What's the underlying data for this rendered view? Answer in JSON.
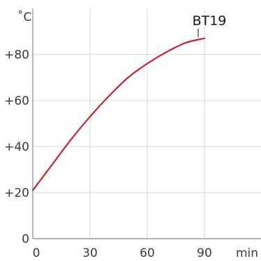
{
  "chart_data": {
    "type": "line",
    "title": "",
    "xlabel": "min",
    "ylabel": "˚C",
    "xlim": [
      0,
      90
    ],
    "ylim": [
      0,
      100
    ],
    "x_ticks": [
      0,
      30,
      60,
      90
    ],
    "x_tick_labels": [
      "0",
      "30",
      "60",
      "90"
    ],
    "y_ticks": [
      0,
      20,
      40,
      60,
      80
    ],
    "y_tick_labels": [
      "0",
      "+20",
      "+40",
      "+60",
      "+80"
    ],
    "grid": true,
    "series": [
      {
        "name": "BT19",
        "color": "#d0202e",
        "x": [
          0,
          10,
          20,
          30,
          40,
          50,
          60,
          70,
          80,
          90
        ],
        "y": [
          21,
          32,
          43,
          53,
          62,
          70,
          76,
          81,
          85,
          87
        ]
      }
    ],
    "annotations": [
      {
        "text": "BT19",
        "x": 90,
        "y": 87
      }
    ]
  }
}
